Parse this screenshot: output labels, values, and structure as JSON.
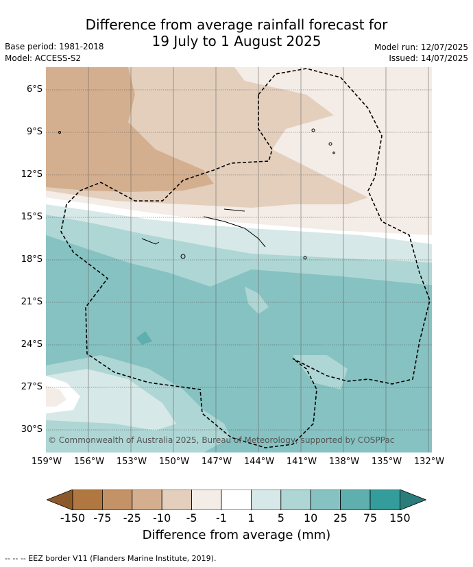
{
  "header": {
    "title_line1": "Difference from average rainfall forecast for",
    "title_line2": "19 July to 1 August 2025",
    "base_period": "Base period: 1981-2018",
    "model": "Model: ACCESS-S2",
    "model_run": "Model run: 12/07/2025",
    "issued": "Issued: 14/07/2025"
  },
  "map": {
    "lat_labels": [
      "6°S",
      "9°S",
      "12°S",
      "15°S",
      "18°S",
      "21°S",
      "24°S",
      "27°S",
      "30°S"
    ],
    "lon_labels": [
      "159°W",
      "156°W",
      "153°W",
      "150°W",
      "147°W",
      "144°W",
      "141°W",
      "138°W",
      "135°W",
      "132°W"
    ],
    "copyright": "© Commonwealth of Australia 2025, Bureau of Meteorology, supported by COSPPac"
  },
  "legend": {
    "ticks": [
      "-150",
      "-75",
      "-25",
      "-10",
      "-5",
      "-1",
      "1",
      "5",
      "10",
      "25",
      "75",
      "150"
    ],
    "colors": [
      "#8c5a2a",
      "#b07840",
      "#c39266",
      "#d4af8f",
      "#e4cfbd",
      "#f4ece6",
      "#ffffff",
      "#d6e8e7",
      "#aed6d5",
      "#86c2c1",
      "#5eafae",
      "#349c9a",
      "#2a7d7b"
    ],
    "title": "Difference from average (mm)"
  },
  "footer": {
    "eez_note": "--  --  -- EEZ border V11 (Flanders Marine Institute, 2019)."
  }
}
